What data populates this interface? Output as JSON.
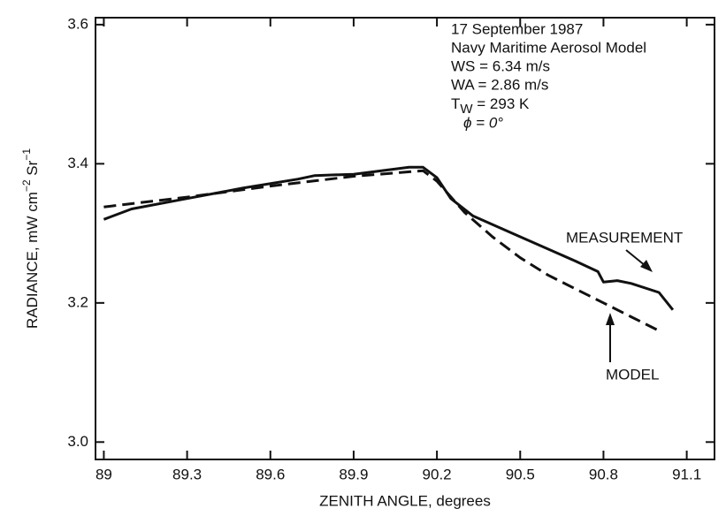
{
  "chart_data": {
    "type": "line",
    "x_label": "ZENITH ANGLE, degrees",
    "y_label": {
      "text": "RADIANCE, mW cm",
      "sup1": "−2",
      "text2": " Sr",
      "sup2": "−1"
    },
    "annotation": {
      "lines": [
        "17 September 1987",
        "Navy Maritime Aerosol Model",
        "WS = 6.34 m/s",
        "WA = 2.86 m/s"
      ],
      "tw": {
        "symbol": "T",
        "subscript": "W",
        "text": " = 293 K"
      },
      "phi": "ϕ = 0°"
    },
    "xlim": [
      88.97,
      91.2
    ],
    "ylim": [
      2.975,
      3.61
    ],
    "xticks": [
      89,
      89.3,
      89.6,
      89.9,
      90.2,
      90.5,
      90.8,
      91.1
    ],
    "yticks": [
      {
        "value": 3,
        "label": "3.0"
      },
      3.2,
      3.4,
      3.6
    ],
    "series": [
      {
        "name": "MEASUREMENT",
        "color": "#111",
        "dash": false,
        "x": [
          89.0,
          89.1,
          89.3,
          89.5,
          89.7,
          89.76,
          89.9,
          90.1,
          90.15,
          90.2,
          90.25,
          90.33,
          90.5,
          90.7,
          90.78,
          90.8,
          90.85,
          90.9,
          91.0,
          91.05
        ],
        "values": [
          3.32,
          3.335,
          3.35,
          3.365,
          3.378,
          3.383,
          3.385,
          3.395,
          3.395,
          3.38,
          3.35,
          3.325,
          3.295,
          3.26,
          3.245,
          3.23,
          3.232,
          3.228,
          3.215,
          3.19
        ]
      },
      {
        "name": "MODEL",
        "color": "#111",
        "dash": true,
        "x": [
          89.0,
          89.3,
          89.6,
          89.9,
          90.15,
          90.2,
          90.3,
          90.4,
          90.5,
          90.6,
          90.7,
          90.8,
          90.9,
          91.0
        ],
        "values": [
          3.338,
          3.352,
          3.368,
          3.382,
          3.39,
          3.375,
          3.33,
          3.295,
          3.265,
          3.24,
          3.22,
          3.2,
          3.18,
          3.16
        ]
      }
    ]
  }
}
